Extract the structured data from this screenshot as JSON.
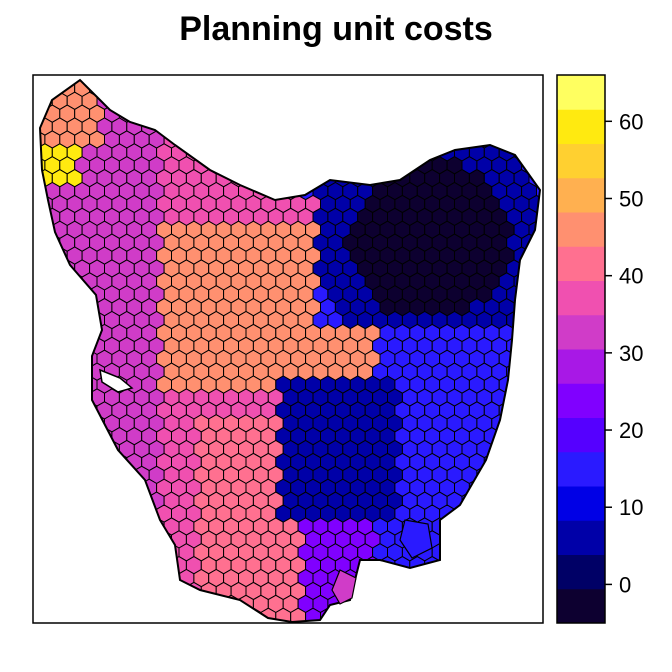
{
  "title": "Planning unit costs",
  "legend": {
    "ticks": [
      {
        "value": 0,
        "label": "0"
      },
      {
        "value": 10,
        "label": "10"
      },
      {
        "value": 20,
        "label": "20"
      },
      {
        "value": 30,
        "label": "30"
      },
      {
        "value": 40,
        "label": "40"
      },
      {
        "value": 50,
        "label": "50"
      },
      {
        "value": 60,
        "label": "60"
      }
    ],
    "range": [
      -5,
      66
    ],
    "colors": [
      "#0d0030",
      "#000066",
      "#0000a8",
      "#0000e6",
      "#2a1aff",
      "#5500ff",
      "#8000ff",
      "#a818e6",
      "#d03cc8",
      "#f050b0",
      "#ff7090",
      "#ff9070",
      "#ffb050",
      "#ffd030",
      "#ffea10",
      "#ffff60"
    ]
  },
  "chart_data": {
    "type": "heatmap",
    "title": "Planning unit costs",
    "zlim": [
      -5,
      66
    ],
    "units": "planning units (hexagonal grid)"
  }
}
